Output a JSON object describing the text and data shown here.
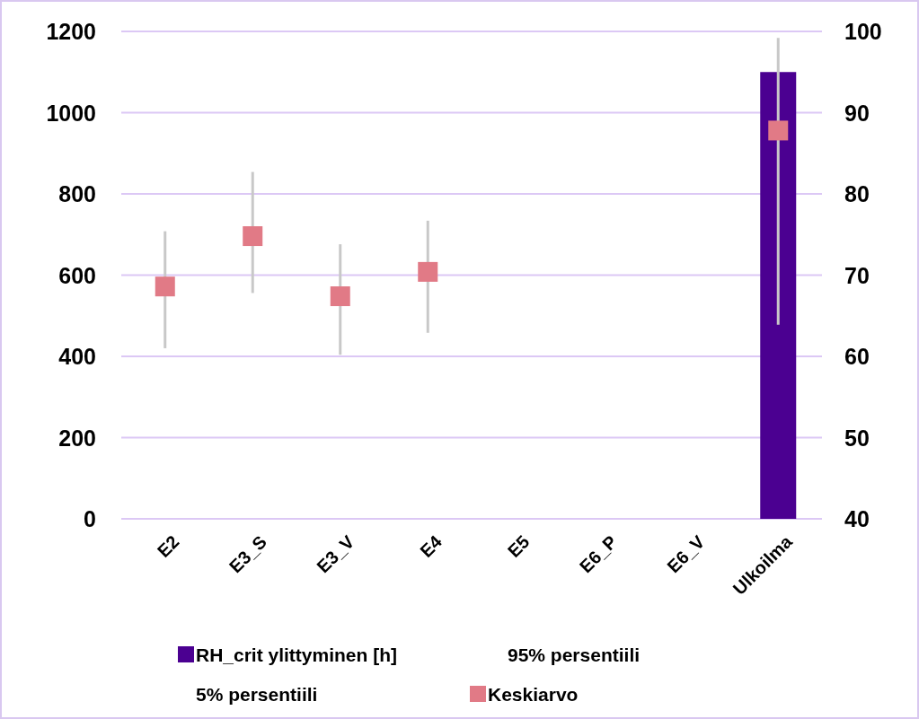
{
  "chart_data": {
    "type": "bar",
    "categories": [
      "E2",
      "E3_S",
      "E3_V",
      "E4",
      "E5",
      "E6_P",
      "E6_V",
      "Ulkoilma"
    ],
    "series": [
      {
        "name": "RH_crit ylittyminen [h]",
        "color": "#4b0091",
        "values": [
          null,
          null,
          null,
          null,
          null,
          null,
          null,
          1100
        ]
      },
      {
        "name": "Keskiarvo",
        "type": "scatter",
        "axis": "y2",
        "color": "#e17a86",
        "values": [
          68.6,
          74.8,
          67.4,
          70.4,
          null,
          null,
          null,
          87.8
        ],
        "errors": [
          [
            61.0,
            75.4
          ],
          [
            67.8,
            82.7
          ],
          [
            60.2,
            73.8
          ],
          [
            62.9,
            76.7
          ],
          null,
          null,
          null,
          [
            63.9,
            99.2
          ]
        ]
      }
    ],
    "ylim": [
      0,
      1200
    ],
    "yticks": [
      0,
      200,
      400,
      600,
      800,
      1000,
      1200
    ],
    "y2lim": [
      40,
      100
    ],
    "y2ticks": [
      40,
      50,
      60,
      70,
      80,
      90,
      100
    ],
    "grid": "y",
    "legend": "bottom",
    "marker": "square",
    "annotations": [
      "95% persentiili",
      "5% persentiili"
    ]
  }
}
